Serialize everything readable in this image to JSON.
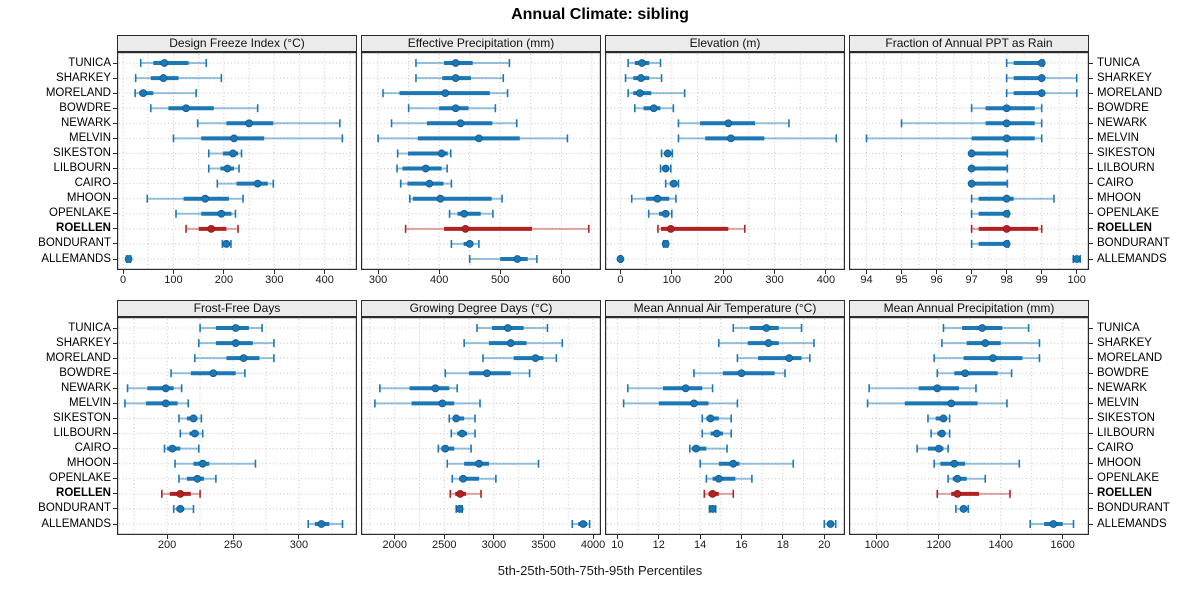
{
  "title": "Annual Climate: sibling",
  "caption": "5th-25th-50th-75th-95th Percentiles",
  "colors": {
    "series": "#1c77b5",
    "series_whisker": "rgba(28,119,181,0.45)",
    "highlight": "#b22222",
    "highlight_whisker": "rgba(178,34,34,0.40)",
    "strip_bg": "#ebebeb",
    "grid": "#c8c8c8",
    "border": "#2b2b2b"
  },
  "chart_data": {
    "type": "dotplot-interval-trellis",
    "percentile_labels": [
      "5th",
      "25th",
      "50th",
      "75th",
      "95th"
    ],
    "sites": [
      "TUNICA",
      "SHARKEY",
      "MORELAND",
      "BOWDRE",
      "NEWARK",
      "MELVIN",
      "SIKESTON",
      "LILBOURN",
      "CAIRO",
      "MHOON",
      "OPENLAKE",
      "ROELLEN",
      "BONDURANT",
      "ALLEMANDS"
    ],
    "highlight_site": "ROELLEN",
    "grid": "dotted",
    "panels": [
      {
        "title": "Design Freeze Index (°C)",
        "row": 0,
        "col": 0,
        "xlim": [
          -12,
          464
        ],
        "ticks": [
          0,
          100,
          200,
          300,
          400
        ],
        "values": {
          "TUNICA": [
            35,
            60,
            82,
            130,
            165
          ],
          "SHARKEY": [
            25,
            55,
            80,
            110,
            195
          ],
          "MORELAND": [
            24,
            32,
            40,
            60,
            145
          ],
          "BOWDRE": [
            55,
            90,
            125,
            180,
            267
          ],
          "NEWARK": [
            148,
            205,
            250,
            298,
            430
          ],
          "MELVIN": [
            100,
            155,
            220,
            280,
            435
          ],
          "SIKESTON": [
            170,
            198,
            218,
            228,
            235
          ],
          "LILBOURN": [
            170,
            193,
            207,
            220,
            230
          ],
          "CAIRO": [
            187,
            225,
            267,
            287,
            298
          ],
          "MHOON": [
            48,
            120,
            163,
            210,
            238
          ],
          "OPENLAKE": [
            105,
            155,
            195,
            215,
            223
          ],
          "ROELLEN": [
            125,
            150,
            175,
            205,
            228
          ],
          "BONDURANT": [
            197,
            201,
            205,
            210,
            214
          ],
          "ALLEMANDS": [
            7,
            9,
            11,
            13,
            15
          ]
        }
      },
      {
        "title": "Effective Precipitation (mm)",
        "row": 0,
        "col": 1,
        "xlim": [
          272,
          665
        ],
        "ticks": [
          300,
          400,
          500,
          600
        ],
        "values": {
          "TUNICA": [
            362,
            408,
            427,
            455,
            515
          ],
          "SHARKEY": [
            362,
            405,
            427,
            452,
            505
          ],
          "MORELAND": [
            308,
            335,
            410,
            483,
            512
          ],
          "BOWDRE": [
            350,
            400,
            427,
            448,
            492
          ],
          "NEWARK": [
            322,
            380,
            435,
            487,
            527
          ],
          "MELVIN": [
            300,
            365,
            465,
            532,
            610
          ],
          "SIKESTON": [
            332,
            349,
            404,
            414,
            419
          ],
          "LILBOURN": [
            331,
            340,
            378,
            404,
            413
          ],
          "CAIRO": [
            337,
            348,
            384,
            407,
            420
          ],
          "MHOON": [
            352,
            357,
            402,
            486,
            503
          ],
          "OPENLAKE": [
            417,
            430,
            441,
            468,
            488
          ],
          "ROELLEN": [
            345,
            408,
            443,
            552,
            645
          ],
          "BONDURANT": [
            420,
            440,
            450,
            456,
            465
          ],
          "ALLEMANDS": [
            450,
            500,
            528,
            545,
            560
          ]
        }
      },
      {
        "title": "Elevation (m)",
        "row": 0,
        "col": 2,
        "xlim": [
          -30,
          437
        ],
        "ticks": [
          0,
          100,
          200,
          300,
          400
        ],
        "values": {
          "TUNICA": [
            15,
            28,
            42,
            56,
            78
          ],
          "SHARKEY": [
            10,
            25,
            40,
            56,
            80
          ],
          "MORELAND": [
            15,
            25,
            38,
            60,
            125
          ],
          "BOWDRE": [
            28,
            45,
            65,
            78,
            103
          ],
          "NEWARK": [
            113,
            155,
            210,
            262,
            328
          ],
          "MELVIN": [
            113,
            165,
            215,
            280,
            420
          ],
          "SIKESTON": [
            80,
            86,
            92,
            97,
            101
          ],
          "LILBOURN": [
            78,
            83,
            88,
            93,
            98
          ],
          "CAIRO": [
            88,
            96,
            104,
            109,
            113
          ],
          "MHOON": [
            22,
            50,
            72,
            95,
            108
          ],
          "OPENLAKE": [
            55,
            75,
            88,
            95,
            100
          ],
          "ROELLEN": [
            73,
            79,
            98,
            210,
            242
          ],
          "BONDURANT": [
            84,
            86,
            88,
            90,
            92
          ],
          "ALLEMANDS": [
            -1,
            0,
            0,
            1,
            2
          ]
        }
      },
      {
        "title": "Fraction of Annual PPT as Rain",
        "row": 0,
        "col": 3,
        "xlim": [
          93.5,
          100.35
        ],
        "ticks": [
          94,
          95,
          96,
          97,
          98,
          99,
          100
        ],
        "values": {
          "TUNICA": [
            98,
            98.2,
            99,
            99,
            99.05
          ],
          "SHARKEY": [
            98,
            98.2,
            99,
            99,
            100
          ],
          "MORELAND": [
            98,
            98.2,
            99,
            99,
            100
          ],
          "BOWDRE": [
            97,
            97.4,
            98,
            98.8,
            99
          ],
          "NEWARK": [
            95,
            97.4,
            98,
            98.8,
            99
          ],
          "MELVIN": [
            94,
            97,
            98,
            98.8,
            99
          ],
          "SIKESTON": [
            97,
            97,
            97,
            98,
            98.02
          ],
          "LILBOURN": [
            97,
            97,
            97,
            98,
            98.02
          ],
          "CAIRO": [
            97,
            97,
            97,
            98,
            98.02
          ],
          "MHOON": [
            97,
            97.2,
            98,
            98.2,
            99.35
          ],
          "OPENLAKE": [
            97,
            97.2,
            98,
            98,
            98.05
          ],
          "ROELLEN": [
            97,
            97.2,
            98,
            98.9,
            99
          ],
          "BONDURANT": [
            97,
            97.2,
            98,
            98,
            98.05
          ],
          "ALLEMANDS": [
            99.9,
            100,
            100,
            100,
            100.1
          ]
        }
      },
      {
        "title": "Frost-Free Days",
        "row": 1,
        "col": 0,
        "xlim": [
          162,
          344
        ],
        "ticks": [
          200,
          250,
          300
        ],
        "values": {
          "TUNICA": [
            225,
            237,
            252,
            262,
            272
          ],
          "SHARKEY": [
            224,
            237,
            252,
            265,
            281
          ],
          "MORELAND": [
            221,
            245,
            258,
            270,
            281
          ],
          "BOWDRE": [
            203,
            218,
            235,
            252,
            259
          ],
          "NEWARK": [
            170,
            185,
            199,
            205,
            211
          ],
          "MELVIN": [
            168,
            184,
            199,
            208,
            216
          ],
          "SIKESTON": [
            209,
            215,
            220,
            223,
            226
          ],
          "LILBOURN": [
            210,
            217,
            221,
            224,
            227
          ],
          "CAIRO": [
            198,
            200,
            204,
            210,
            224
          ],
          "MHOON": [
            206,
            220,
            227,
            232,
            267
          ],
          "OPENLAKE": [
            209,
            215,
            223,
            228,
            237
          ],
          "ROELLEN": [
            196,
            202,
            210,
            218,
            225
          ],
          "BONDURANT": [
            205,
            207,
            210,
            213,
            220
          ],
          "ALLEMANDS": [
            307,
            312,
            317,
            323,
            333
          ]
        }
      },
      {
        "title": "Growing Degree Days (°C)",
        "row": 1,
        "col": 1,
        "xlim": [
          1660,
          4080
        ],
        "ticks": [
          2000,
          2500,
          3000,
          3500,
          4000
        ],
        "values": {
          "TUNICA": [
            2830,
            2980,
            3140,
            3300,
            3540
          ],
          "SHARKEY": [
            2700,
            2950,
            3170,
            3330,
            3690
          ],
          "MORELAND": [
            2890,
            3200,
            3420,
            3500,
            3630
          ],
          "BOWDRE": [
            2510,
            2750,
            2930,
            3170,
            3360
          ],
          "NEWARK": [
            1850,
            2150,
            2410,
            2550,
            2630
          ],
          "MELVIN": [
            1800,
            2170,
            2480,
            2600,
            2860
          ],
          "SIKESTON": [
            2550,
            2590,
            2620,
            2700,
            2810
          ],
          "LILBOURN": [
            2570,
            2630,
            2680,
            2730,
            2810
          ],
          "CAIRO": [
            2440,
            2470,
            2510,
            2600,
            2770
          ],
          "MHOON": [
            2530,
            2700,
            2850,
            2950,
            3450
          ],
          "OPENLAKE": [
            2580,
            2650,
            2690,
            2850,
            3020
          ],
          "ROELLEN": [
            2560,
            2610,
            2660,
            2720,
            2870
          ],
          "BONDURANT": [
            2620,
            2640,
            2655,
            2665,
            2680
          ],
          "ALLEMANDS": [
            3790,
            3850,
            3900,
            3940,
            3965
          ]
        }
      },
      {
        "title": "Mean Annual Air Temperature (°C)",
        "row": 1,
        "col": 2,
        "xlim": [
          9.4,
          21.0
        ],
        "ticks": [
          10,
          12,
          14,
          16,
          18,
          20
        ],
        "values": {
          "TUNICA": [
            15.6,
            16.4,
            17.2,
            17.8,
            18.9
          ],
          "SHARKEY": [
            14.9,
            16.3,
            17.3,
            17.8,
            19.5
          ],
          "MORELAND": [
            15.8,
            16.8,
            18.3,
            18.9,
            19.3
          ],
          "BOWDRE": [
            13.7,
            15.1,
            16.0,
            17.6,
            18.1
          ],
          "NEWARK": [
            10.5,
            12.2,
            13.3,
            14.1,
            14.6
          ],
          "MELVIN": [
            10.3,
            12.0,
            13.7,
            14.4,
            15.8
          ],
          "SIKESTON": [
            14.1,
            14.3,
            14.5,
            14.9,
            15.5
          ],
          "LILBOURN": [
            14.1,
            14.5,
            14.8,
            15.1,
            15.5
          ],
          "CAIRO": [
            13.5,
            13.6,
            13.8,
            14.3,
            15.3
          ],
          "MHOON": [
            14.0,
            14.9,
            15.6,
            15.9,
            18.5
          ],
          "OPENLAKE": [
            14.3,
            14.6,
            14.9,
            15.7,
            16.5
          ],
          "ROELLEN": [
            14.2,
            14.4,
            14.6,
            14.9,
            15.6
          ],
          "BONDURANT": [
            14.45,
            14.5,
            14.6,
            14.65,
            14.75
          ],
          "ALLEMANDS": [
            20.0,
            20.15,
            20.3,
            20.45,
            20.55
          ]
        }
      },
      {
        "title": "Mean Annual Precipitation (mm)",
        "row": 1,
        "col": 3,
        "xlim": [
          910,
          1685
        ],
        "ticks": [
          1000,
          1200,
          1400,
          1600
        ],
        "values": {
          "TUNICA": [
            1215,
            1275,
            1340,
            1405,
            1490
          ],
          "SHARKEY": [
            1210,
            1290,
            1350,
            1400,
            1525
          ],
          "MORELAND": [
            1185,
            1280,
            1375,
            1470,
            1525
          ],
          "BOWDRE": [
            1195,
            1250,
            1285,
            1390,
            1435
          ],
          "NEWARK": [
            975,
            1135,
            1195,
            1265,
            1320
          ],
          "MELVIN": [
            970,
            1090,
            1240,
            1325,
            1420
          ],
          "SIKESTON": [
            1165,
            1190,
            1215,
            1225,
            1235
          ],
          "LILBOURN": [
            1175,
            1195,
            1210,
            1220,
            1235
          ],
          "CAIRO": [
            1130,
            1165,
            1200,
            1215,
            1230
          ],
          "MHOON": [
            1185,
            1205,
            1250,
            1285,
            1460
          ],
          "OPENLAKE": [
            1230,
            1245,
            1260,
            1290,
            1350
          ],
          "ROELLEN": [
            1195,
            1240,
            1260,
            1330,
            1430
          ],
          "BONDURANT": [
            1255,
            1270,
            1280,
            1290,
            1295
          ],
          "ALLEMANDS": [
            1495,
            1540,
            1570,
            1600,
            1635
          ]
        }
      }
    ]
  }
}
